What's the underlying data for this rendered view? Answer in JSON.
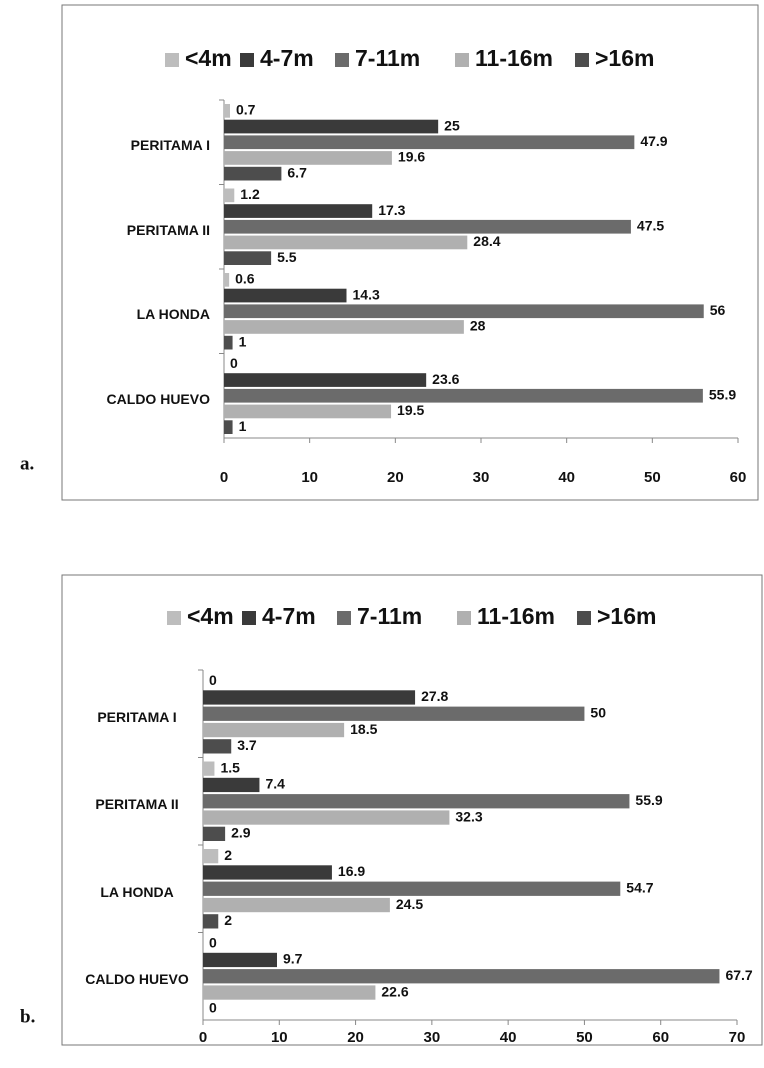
{
  "chart_data": [
    {
      "type": "bar",
      "orientation": "horizontal",
      "panel_label": "a.",
      "categories": [
        "PERITAMA  I",
        "PERITAMA II",
        "LA HONDA",
        "CALDO HUEVO"
      ],
      "series": [
        {
          "name": "<4m",
          "color": "#bdbdbd",
          "values": [
            0.7,
            1.2,
            0.6,
            0
          ]
        },
        {
          "name": "4-7m",
          "color": "#3a3a3a",
          "values": [
            25,
            17.3,
            14.3,
            23.6
          ]
        },
        {
          "name": "7-11m",
          "color": "#6b6b6b",
          "values": [
            47.9,
            47.5,
            56,
            55.9
          ]
        },
        {
          "name": "11-16m",
          "color": "#b0b0b0",
          "values": [
            19.6,
            28.4,
            28,
            19.5
          ]
        },
        {
          "name": ">16m",
          "color": "#4d4d4d",
          "values": [
            6.7,
            5.5,
            1,
            1
          ]
        }
      ],
      "xlim": [
        0,
        60
      ],
      "xticks": [
        0,
        10,
        20,
        30,
        40,
        50,
        60
      ],
      "legend": "top"
    },
    {
      "type": "bar",
      "orientation": "horizontal",
      "panel_label": "b.",
      "categories": [
        "PERITAMA  I",
        "PERITAMA II",
        "LA HONDA",
        "CALDO HUEVO"
      ],
      "series": [
        {
          "name": "<4m",
          "color": "#bdbdbd",
          "values": [
            0,
            1.5,
            2,
            0
          ]
        },
        {
          "name": "4-7m",
          "color": "#3a3a3a",
          "values": [
            27.8,
            7.4,
            16.9,
            9.7
          ]
        },
        {
          "name": "7-11m",
          "color": "#6b6b6b",
          "values": [
            50,
            55.9,
            54.7,
            67.7
          ]
        },
        {
          "name": "11-16m",
          "color": "#b0b0b0",
          "values": [
            18.5,
            32.3,
            24.5,
            22.6
          ]
        },
        {
          "name": ">16m",
          "color": "#4d4d4d",
          "values": [
            3.7,
            2.9,
            2,
            0
          ]
        }
      ],
      "xlim": [
        0,
        70
      ],
      "xticks": [
        0,
        10,
        20,
        30,
        40,
        50,
        60,
        70
      ],
      "legend": "top"
    }
  ]
}
